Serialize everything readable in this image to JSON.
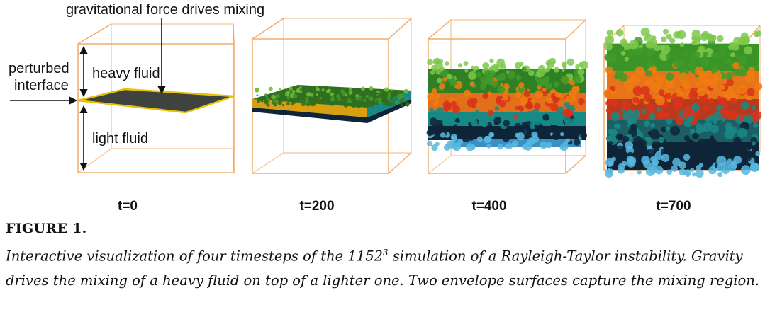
{
  "figure": {
    "annotations": {
      "gravity": "gravitational force drives mixing",
      "perturbed_line1": "perturbed",
      "perturbed_line2": "interface",
      "heavy": "heavy fluid",
      "light": "light fluid"
    },
    "panels": [
      {
        "label": "t=0"
      },
      {
        "label": "t=200"
      },
      {
        "label": "t=400"
      },
      {
        "label": "t=700"
      }
    ],
    "colors": {
      "box_edge": "#f0a864",
      "interface_fill": "#3e4340",
      "interface_edge": "#e8c200",
      "heavy_green": "#3f9a2a",
      "mix_orange": "#f07c10",
      "mix_red": "#d8321c",
      "teal": "#178a86",
      "dark_navy": "#0e2538",
      "light_blue": "#57b8e0"
    }
  },
  "caption": {
    "label": "FIGURE 1.",
    "text_before_sup": "Interactive visualization of four timesteps of the 1152",
    "sup": "3",
    "text_after_sup": " simulation of a Rayleigh-Taylor instability. Gravity drives the mixing of a heavy fluid on top of a lighter one. Two envelope surfaces capture the mixing region."
  }
}
